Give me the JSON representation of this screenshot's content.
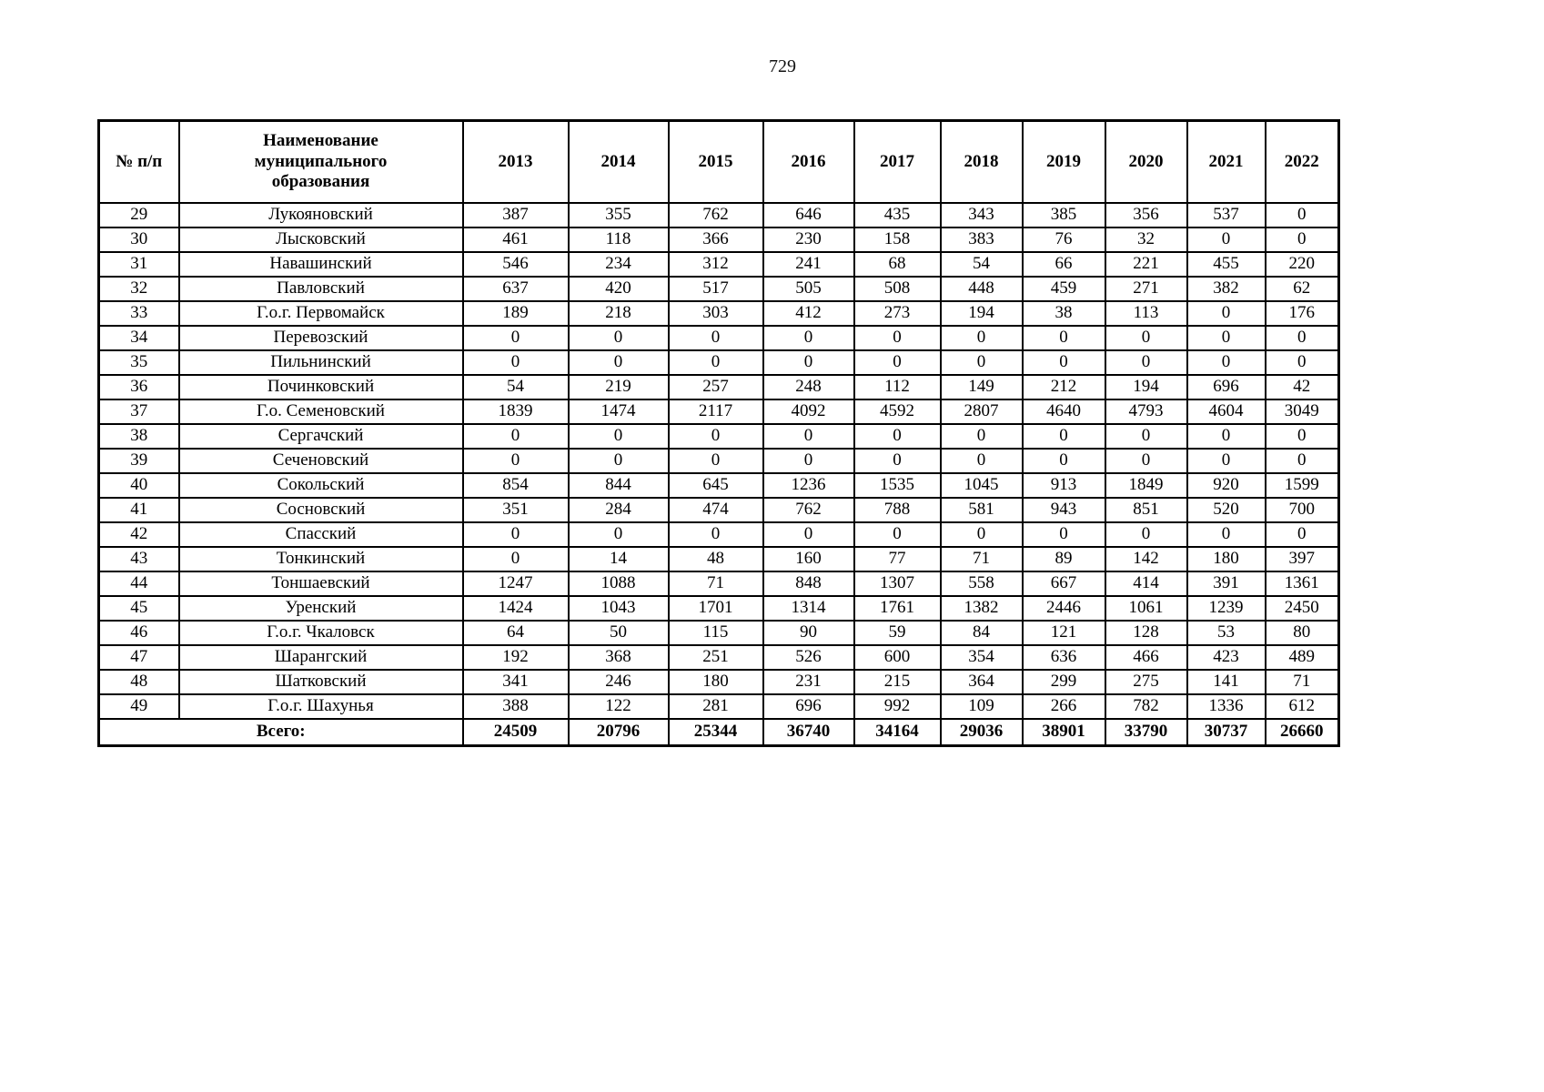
{
  "page_number": "729",
  "table": {
    "header": {
      "num_label": "№ п/п",
      "name_label": "Наименование муниципального образования",
      "years": [
        "2013",
        "2014",
        "2015",
        "2016",
        "2017",
        "2018",
        "2019",
        "2020",
        "2021",
        "2022"
      ]
    },
    "rows": [
      {
        "num": "29",
        "name": "Лукояновский",
        "values": [
          "387",
          "355",
          "762",
          "646",
          "435",
          "343",
          "385",
          "356",
          "537",
          "0"
        ]
      },
      {
        "num": "30",
        "name": "Лысковский",
        "values": [
          "461",
          "118",
          "366",
          "230",
          "158",
          "383",
          "76",
          "32",
          "0",
          "0"
        ]
      },
      {
        "num": "31",
        "name": "Навашинский",
        "values": [
          "546",
          "234",
          "312",
          "241",
          "68",
          "54",
          "66",
          "221",
          "455",
          "220"
        ]
      },
      {
        "num": "32",
        "name": "Павловский",
        "values": [
          "637",
          "420",
          "517",
          "505",
          "508",
          "448",
          "459",
          "271",
          "382",
          "62"
        ]
      },
      {
        "num": "33",
        "name": "Г.о.г. Первомайск",
        "values": [
          "189",
          "218",
          "303",
          "412",
          "273",
          "194",
          "38",
          "113",
          "0",
          "176"
        ]
      },
      {
        "num": "34",
        "name": "Перевозский",
        "values": [
          "0",
          "0",
          "0",
          "0",
          "0",
          "0",
          "0",
          "0",
          "0",
          "0"
        ]
      },
      {
        "num": "35",
        "name": "Пильнинский",
        "values": [
          "0",
          "0",
          "0",
          "0",
          "0",
          "0",
          "0",
          "0",
          "0",
          "0"
        ]
      },
      {
        "num": "36",
        "name": "Починковский",
        "values": [
          "54",
          "219",
          "257",
          "248",
          "112",
          "149",
          "212",
          "194",
          "696",
          "42"
        ]
      },
      {
        "num": "37",
        "name": "Г.о. Семеновский",
        "values": [
          "1839",
          "1474",
          "2117",
          "4092",
          "4592",
          "2807",
          "4640",
          "4793",
          "4604",
          "3049"
        ]
      },
      {
        "num": "38",
        "name": "Сергачский",
        "values": [
          "0",
          "0",
          "0",
          "0",
          "0",
          "0",
          "0",
          "0",
          "0",
          "0"
        ]
      },
      {
        "num": "39",
        "name": "Сеченовский",
        "values": [
          "0",
          "0",
          "0",
          "0",
          "0",
          "0",
          "0",
          "0",
          "0",
          "0"
        ]
      },
      {
        "num": "40",
        "name": "Сокольский",
        "values": [
          "854",
          "844",
          "645",
          "1236",
          "1535",
          "1045",
          "913",
          "1849",
          "920",
          "1599"
        ]
      },
      {
        "num": "41",
        "name": "Сосновский",
        "values": [
          "351",
          "284",
          "474",
          "762",
          "788",
          "581",
          "943",
          "851",
          "520",
          "700"
        ]
      },
      {
        "num": "42",
        "name": "Спасский",
        "values": [
          "0",
          "0",
          "0",
          "0",
          "0",
          "0",
          "0",
          "0",
          "0",
          "0"
        ]
      },
      {
        "num": "43",
        "name": "Тонкинский",
        "values": [
          "0",
          "14",
          "48",
          "160",
          "77",
          "71",
          "89",
          "142",
          "180",
          "397"
        ]
      },
      {
        "num": "44",
        "name": "Тоншаевский",
        "values": [
          "1247",
          "1088",
          "71",
          "848",
          "1307",
          "558",
          "667",
          "414",
          "391",
          "1361"
        ]
      },
      {
        "num": "45",
        "name": "Уренский",
        "values": [
          "1424",
          "1043",
          "1701",
          "1314",
          "1761",
          "1382",
          "2446",
          "1061",
          "1239",
          "2450"
        ]
      },
      {
        "num": "46",
        "name": "Г.о.г. Чкаловск",
        "values": [
          "64",
          "50",
          "115",
          "90",
          "59",
          "84",
          "121",
          "128",
          "53",
          "80"
        ]
      },
      {
        "num": "47",
        "name": "Шарангский",
        "values": [
          "192",
          "368",
          "251",
          "526",
          "600",
          "354",
          "636",
          "466",
          "423",
          "489"
        ]
      },
      {
        "num": "48",
        "name": "Шатковский",
        "values": [
          "341",
          "246",
          "180",
          "231",
          "215",
          "364",
          "299",
          "275",
          "141",
          "71"
        ]
      },
      {
        "num": "49",
        "name": "Г.о.г. Шахунья",
        "values": [
          "388",
          "122",
          "281",
          "696",
          "992",
          "109",
          "266",
          "782",
          "1336",
          "612"
        ]
      }
    ],
    "total": {
      "label": "Всего:",
      "values": [
        "24509",
        "20796",
        "25344",
        "36740",
        "34164",
        "29036",
        "38901",
        "33790",
        "30737",
        "26660"
      ]
    }
  },
  "chart_data": {
    "type": "table",
    "title": "",
    "categories": [
      "2013",
      "2014",
      "2015",
      "2016",
      "2017",
      "2018",
      "2019",
      "2020",
      "2021",
      "2022"
    ],
    "series": [
      {
        "name": "Лукояновский",
        "values": [
          387,
          355,
          762,
          646,
          435,
          343,
          385,
          356,
          537,
          0
        ]
      },
      {
        "name": "Лысковский",
        "values": [
          461,
          118,
          366,
          230,
          158,
          383,
          76,
          32,
          0,
          0
        ]
      },
      {
        "name": "Навашинский",
        "values": [
          546,
          234,
          312,
          241,
          68,
          54,
          66,
          221,
          455,
          220
        ]
      },
      {
        "name": "Павловский",
        "values": [
          637,
          420,
          517,
          505,
          508,
          448,
          459,
          271,
          382,
          62
        ]
      },
      {
        "name": "Г.о.г. Первомайск",
        "values": [
          189,
          218,
          303,
          412,
          273,
          194,
          38,
          113,
          0,
          176
        ]
      },
      {
        "name": "Перевозский",
        "values": [
          0,
          0,
          0,
          0,
          0,
          0,
          0,
          0,
          0,
          0
        ]
      },
      {
        "name": "Пильнинский",
        "values": [
          0,
          0,
          0,
          0,
          0,
          0,
          0,
          0,
          0,
          0
        ]
      },
      {
        "name": "Починковский",
        "values": [
          54,
          219,
          257,
          248,
          112,
          149,
          212,
          194,
          696,
          42
        ]
      },
      {
        "name": "Г.о. Семеновский",
        "values": [
          1839,
          1474,
          2117,
          4092,
          4592,
          2807,
          4640,
          4793,
          4604,
          3049
        ]
      },
      {
        "name": "Сергачский",
        "values": [
          0,
          0,
          0,
          0,
          0,
          0,
          0,
          0,
          0,
          0
        ]
      },
      {
        "name": "Сеченовский",
        "values": [
          0,
          0,
          0,
          0,
          0,
          0,
          0,
          0,
          0,
          0
        ]
      },
      {
        "name": "Сокольский",
        "values": [
          854,
          844,
          645,
          1236,
          1535,
          1045,
          913,
          1849,
          920,
          1599
        ]
      },
      {
        "name": "Сосновский",
        "values": [
          351,
          284,
          474,
          762,
          788,
          581,
          943,
          851,
          520,
          700
        ]
      },
      {
        "name": "Спасский",
        "values": [
          0,
          0,
          0,
          0,
          0,
          0,
          0,
          0,
          0,
          0
        ]
      },
      {
        "name": "Тонкинский",
        "values": [
          0,
          14,
          48,
          160,
          77,
          71,
          89,
          142,
          180,
          397
        ]
      },
      {
        "name": "Тоншаевский",
        "values": [
          1247,
          1088,
          71,
          848,
          1307,
          558,
          667,
          414,
          391,
          1361
        ]
      },
      {
        "name": "Уренский",
        "values": [
          1424,
          1043,
          1701,
          1314,
          1761,
          1382,
          2446,
          1061,
          1239,
          2450
        ]
      },
      {
        "name": "Г.о.г. Чкаловск",
        "values": [
          64,
          50,
          115,
          90,
          59,
          84,
          121,
          128,
          53,
          80
        ]
      },
      {
        "name": "Шарангский",
        "values": [
          192,
          368,
          251,
          526,
          600,
          354,
          636,
          466,
          423,
          489
        ]
      },
      {
        "name": "Шатковский",
        "values": [
          341,
          246,
          180,
          231,
          215,
          364,
          299,
          275,
          141,
          71
        ]
      },
      {
        "name": "Г.о.г. Шахунья",
        "values": [
          388,
          122,
          281,
          696,
          992,
          109,
          266,
          782,
          1336,
          612
        ]
      },
      {
        "name": "Всего:",
        "values": [
          24509,
          20796,
          25344,
          36740,
          34164,
          29036,
          38901,
          33790,
          30737,
          26660
        ]
      }
    ]
  }
}
